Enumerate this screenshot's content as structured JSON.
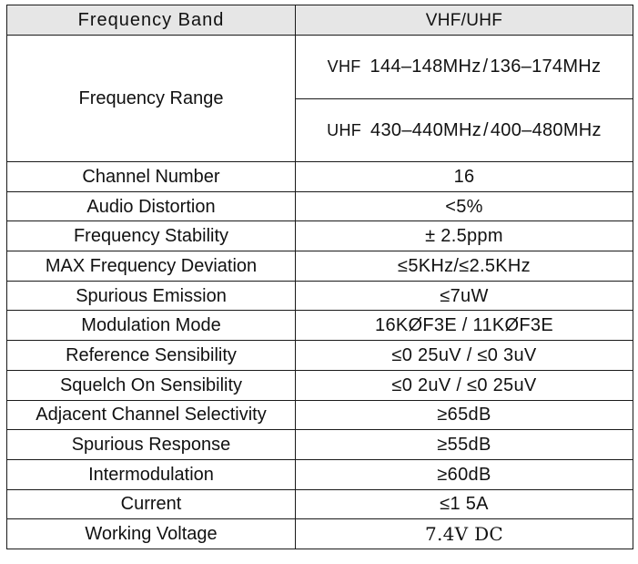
{
  "header": {
    "label": "Frequency Band",
    "value": "VHF/UHF"
  },
  "frequency_range": {
    "label": "Frequency Range",
    "bands": [
      {
        "band": "VHF",
        "range_a": "144–148MHz",
        "separator": "/",
        "range_b": "136–174MHz"
      },
      {
        "band": "UHF",
        "range_a": "430–440MHz",
        "separator": "/",
        "range_b": "400–480MHz"
      }
    ]
  },
  "rows": [
    {
      "label": "Channel Number",
      "value": "16"
    },
    {
      "label": "Audio Distortion",
      "value": "<5%"
    },
    {
      "label": "Frequency Stability",
      "value": "± 2.5ppm"
    },
    {
      "label": "MAX Frequency Deviation",
      "value": "≤5KHz/≤2.5KHz"
    },
    {
      "label": "Spurious Emission",
      "value": "≤7uW"
    },
    {
      "label": "Modulation Mode",
      "value": "16KØF3E / 11KØF3E"
    },
    {
      "label": "Reference Sensibility",
      "value": "≤0 25uV / ≤0 3uV"
    },
    {
      "label": "Squelch On Sensibility",
      "value": "≤0 2uV / ≤0 25uV"
    },
    {
      "label": "Adjacent Channel Selectivity",
      "value": "≥65dB"
    },
    {
      "label": "Spurious Response",
      "value": "≥55dB"
    },
    {
      "label": "Intermodulation",
      "value": "≥60dB"
    },
    {
      "label": "Current",
      "value": "≤1 5A"
    },
    {
      "label": "Working Voltage",
      "value": "7.4V  DC"
    }
  ]
}
